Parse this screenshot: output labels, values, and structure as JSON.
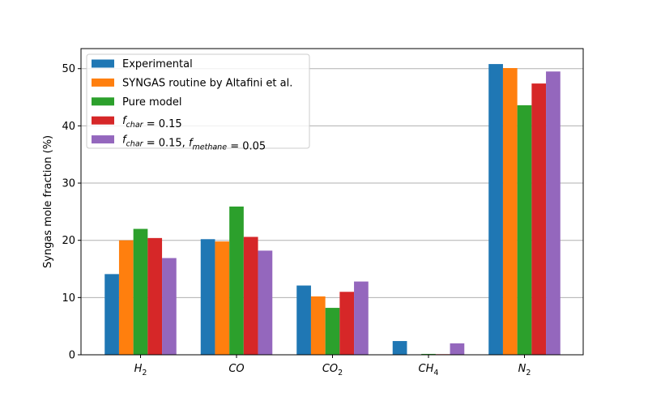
{
  "chart_data": {
    "type": "bar",
    "title": "",
    "xlabel": "",
    "ylabel": "Syngas mole fraction (%)",
    "ylim": [
      0,
      53.5
    ],
    "yticks": [
      0,
      10,
      20,
      30,
      40,
      50
    ],
    "grid": "y",
    "legend_position": "top-left",
    "categories": [
      {
        "base": "H",
        "sub": "2"
      },
      {
        "base": "CO",
        "sub": ""
      },
      {
        "base": "CO",
        "sub": "2"
      },
      {
        "base": "CH",
        "sub": "4"
      },
      {
        "base": "N",
        "sub": "2"
      }
    ],
    "series": [
      {
        "name": "Experimental",
        "color": "#1f77b4",
        "values": [
          14.1,
          20.2,
          12.1,
          2.4,
          50.8
        ]
      },
      {
        "name": "SYNGAS routine by Altafini et al.",
        "color": "#ff7f0e",
        "values": [
          20.0,
          19.8,
          10.2,
          0.0,
          50.1
        ]
      },
      {
        "name": "Pure model",
        "color": "#2ca02c",
        "values": [
          22.0,
          25.9,
          8.2,
          0.15,
          43.6
        ]
      },
      {
        "name": "f_char = 0.15",
        "color": "#d62728",
        "values": [
          20.4,
          20.6,
          11.0,
          0.1,
          47.4
        ]
      },
      {
        "name": "f_char = 0.15, f_methane = 0.05",
        "color": "#9467bd",
        "values": [
          16.9,
          18.2,
          12.8,
          2.0,
          49.5
        ]
      }
    ],
    "legend_math": [
      null,
      null,
      null,
      [
        {
          "t": "f",
          "sub": "char"
        },
        {
          "t": " = 0.15"
        }
      ],
      [
        {
          "t": "f",
          "sub": "char"
        },
        {
          "t": " = 0.15, "
        },
        {
          "t": "f",
          "sub": "methane"
        },
        {
          "t": " = 0.05"
        }
      ]
    ]
  }
}
